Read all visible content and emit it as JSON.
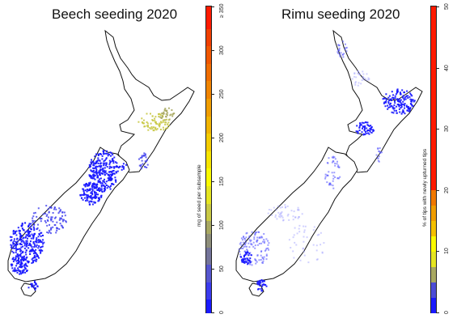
{
  "panels": [
    {
      "id": "beech",
      "title": "Beech seeding 2020",
      "legend": {
        "label": "mg of seed per subsample",
        "max_value": 350,
        "ticks": [
          {
            "value": 0,
            "text": "0"
          },
          {
            "value": 50,
            "text": "50"
          },
          {
            "value": 100,
            "text": "100"
          },
          {
            "value": 150,
            "text": "150"
          },
          {
            "value": 200,
            "text": "200"
          },
          {
            "value": 250,
            "text": "250"
          },
          {
            "value": 300,
            "text": "300"
          },
          {
            "value": 350,
            "text": "≥ 350"
          }
        ],
        "bins": [
          {
            "from": 0,
            "to": 15,
            "color": "#1a1aff"
          },
          {
            "from": 15,
            "to": 35,
            "color": "#3b3bee"
          },
          {
            "from": 35,
            "to": 55,
            "color": "#5656cf"
          },
          {
            "from": 55,
            "to": 75,
            "color": "#74749a"
          },
          {
            "from": 75,
            "to": 90,
            "color": "#8e8e7a"
          },
          {
            "from": 90,
            "to": 105,
            "color": "#a8a862"
          },
          {
            "from": 105,
            "to": 125,
            "color": "#c9c945"
          },
          {
            "from": 125,
            "to": 145,
            "color": "#e5e521"
          },
          {
            "from": 145,
            "to": 165,
            "color": "#fafa00"
          },
          {
            "from": 165,
            "to": 185,
            "color": "#f7e500"
          },
          {
            "from": 185,
            "to": 205,
            "color": "#f4cc00"
          },
          {
            "from": 205,
            "to": 225,
            "color": "#f1b400"
          },
          {
            "from": 225,
            "to": 245,
            "color": "#f09d00"
          },
          {
            "from": 245,
            "to": 265,
            "color": "#f08400"
          },
          {
            "from": 265,
            "to": 285,
            "color": "#f06d00"
          },
          {
            "from": 285,
            "to": 305,
            "color": "#f05600"
          },
          {
            "from": 305,
            "to": 325,
            "color": "#f03f00"
          },
          {
            "from": 325,
            "to": 350,
            "color": "#ff1a00"
          }
        ]
      },
      "dots": [
        {
          "color": "#1a1aff",
          "opacity": 0.95
        },
        {
          "color": "#3b3bee",
          "opacity": 0.8
        },
        {
          "color": "#c9c945",
          "opacity": 0.9
        },
        {
          "color": "#a8a862",
          "opacity": 0.9
        }
      ]
    },
    {
      "id": "rimu",
      "title": "Rimu seeding 2020",
      "legend": {
        "label": "% of tips with newly upturned tips",
        "max_value": 50,
        "ticks": [
          {
            "value": 0,
            "text": "0"
          },
          {
            "value": 10,
            "text": "10"
          },
          {
            "value": 20,
            "text": "20"
          },
          {
            "value": 30,
            "text": "30"
          },
          {
            "value": 40,
            "text": "40"
          },
          {
            "value": 50,
            "text": "50"
          }
        ],
        "bins": [
          {
            "from": 0,
            "to": 2.5,
            "color": "#1a1aff"
          },
          {
            "from": 2.5,
            "to": 5,
            "color": "#4c4cd7"
          },
          {
            "from": 5,
            "to": 7.5,
            "color": "#a8a862"
          },
          {
            "from": 7.5,
            "to": 10,
            "color": "#e5e521"
          },
          {
            "from": 10,
            "to": 12.5,
            "color": "#fafa00"
          },
          {
            "from": 12.5,
            "to": 15,
            "color": "#f4c000"
          },
          {
            "from": 15,
            "to": 17.5,
            "color": "#f09d00"
          },
          {
            "from": 17.5,
            "to": 20,
            "color": "#f07800"
          },
          {
            "from": 20,
            "to": 50,
            "color": "#ff1a00"
          }
        ]
      },
      "dots": [
        {
          "color": "#1a1aff",
          "opacity": 0.95
        },
        {
          "color": "#5a5aff",
          "opacity": 0.6
        },
        {
          "color": "#9a9aff",
          "opacity": 0.45
        }
      ]
    }
  ]
}
